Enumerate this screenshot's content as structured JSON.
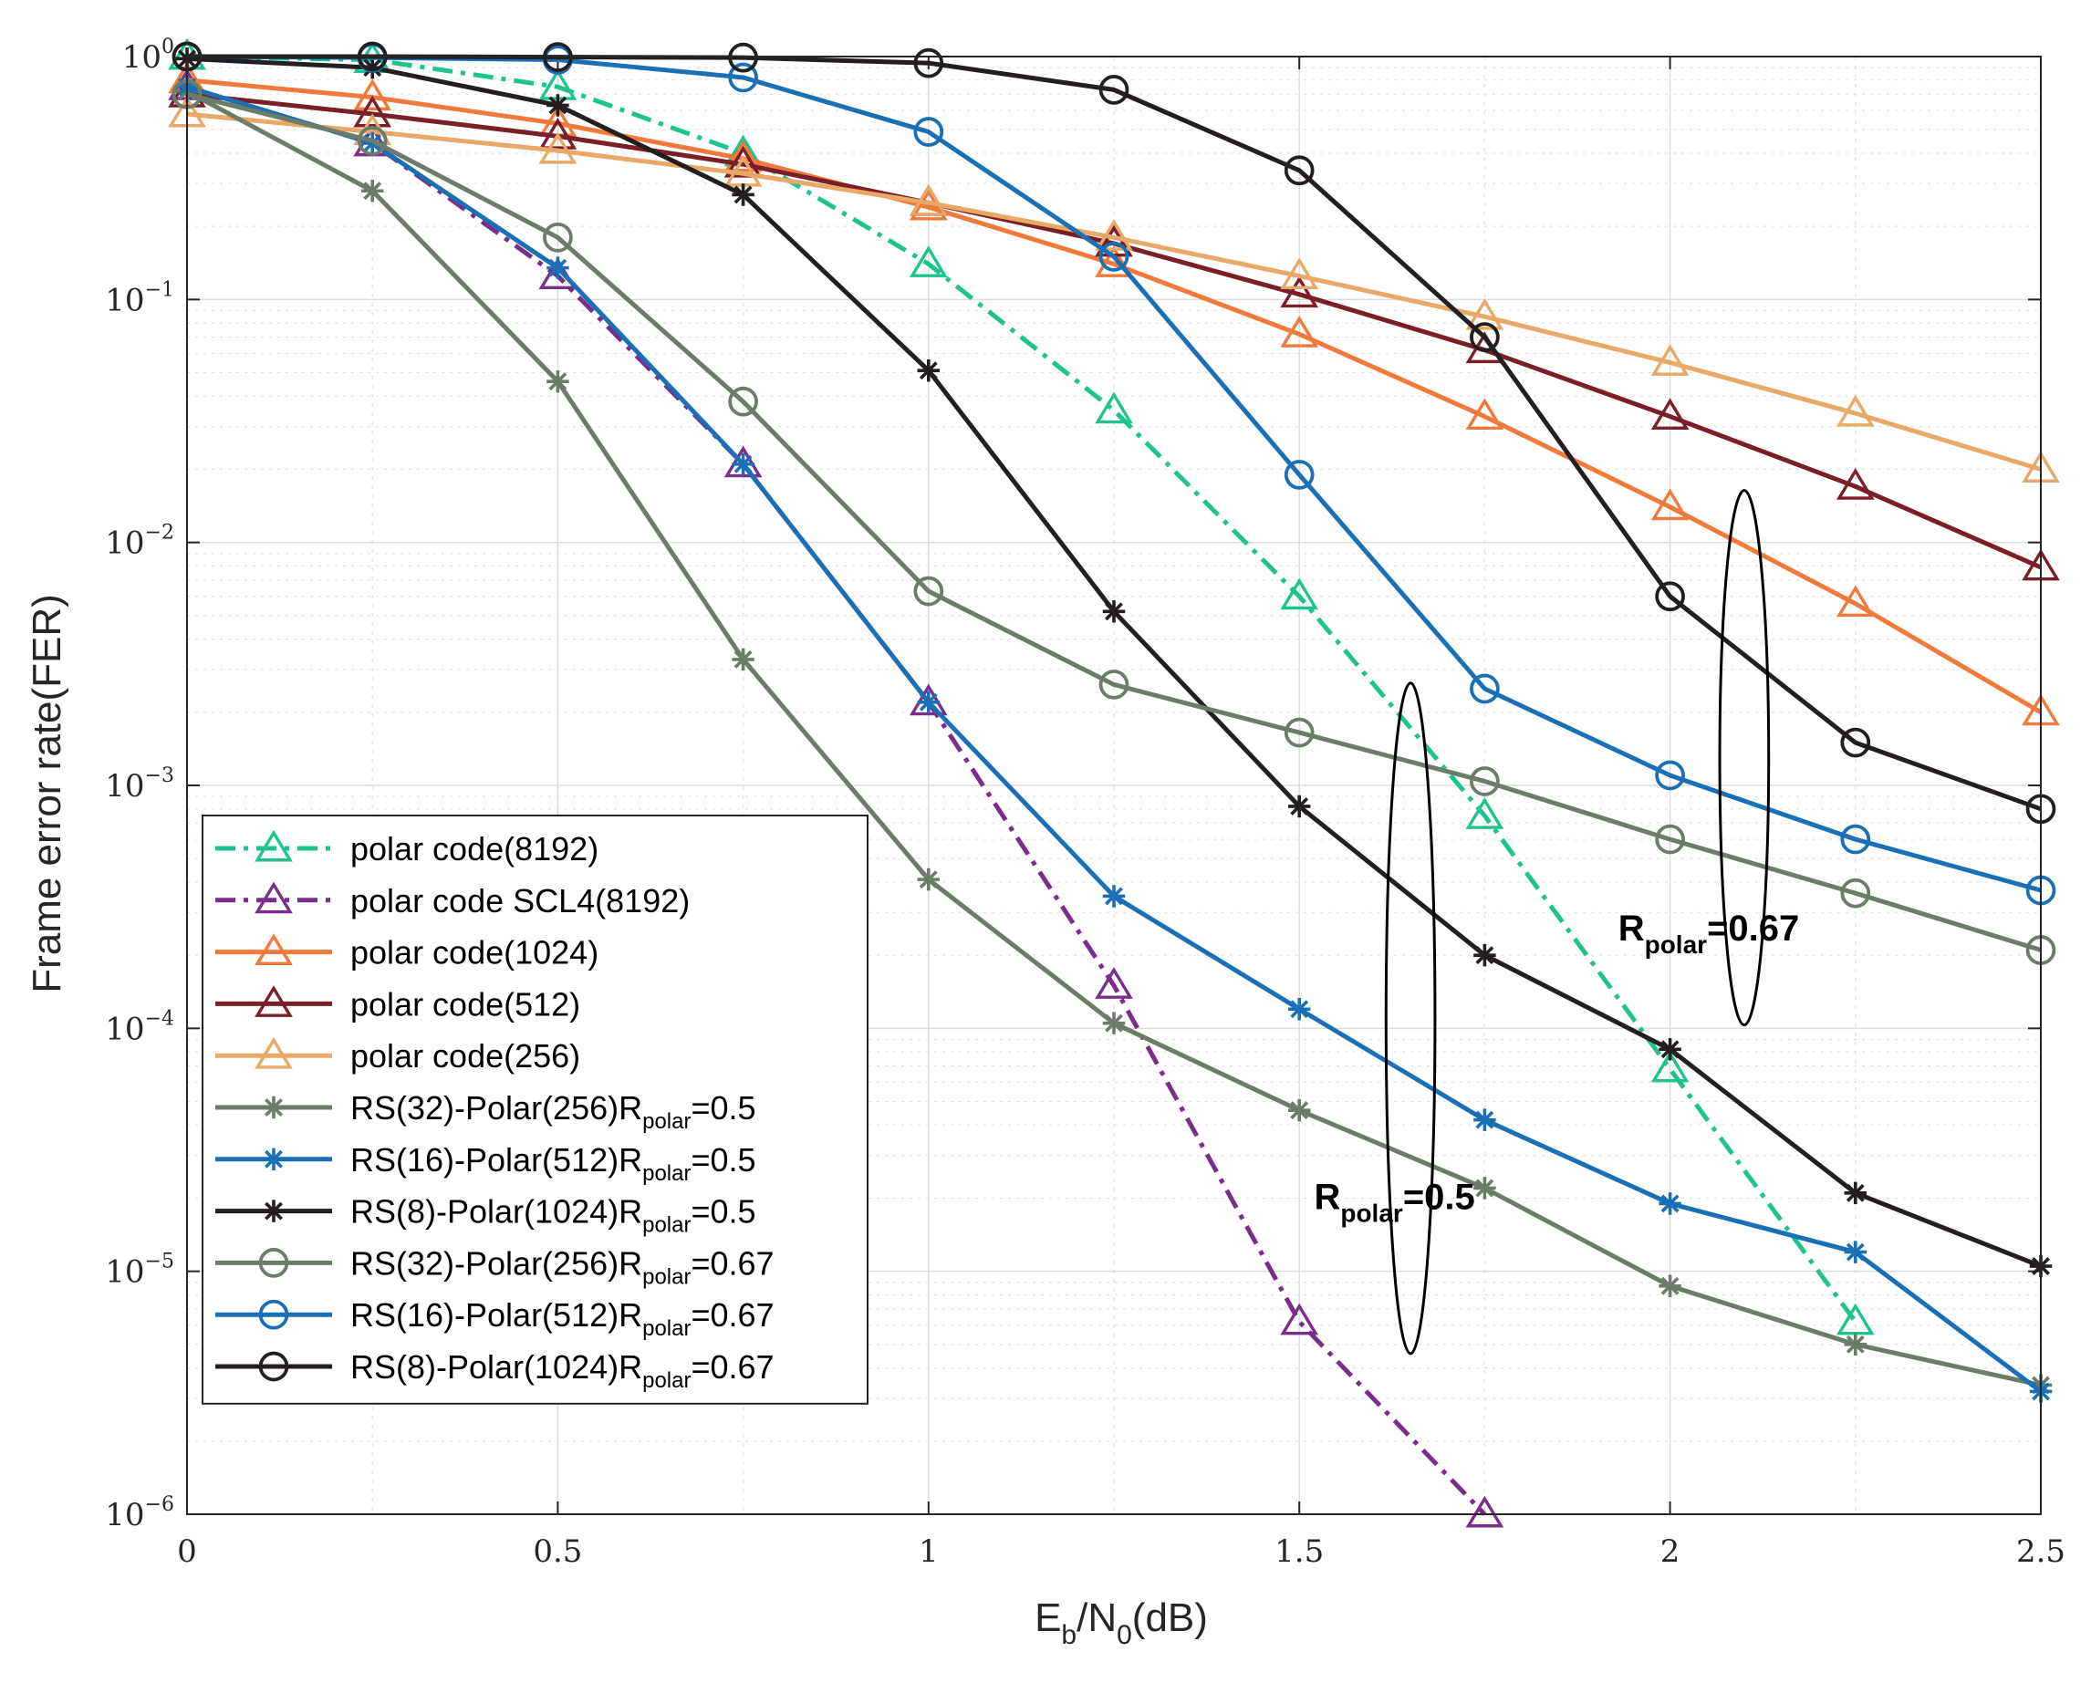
{
  "chart_data": {
    "type": "line",
    "title": "",
    "xlabel": {
      "main": "E",
      "sub1": "b",
      "mid": "/N",
      "sub2": "0",
      "tail": "(dB)"
    },
    "ylabel": "Frame error rate(FER)",
    "xlim": [
      0,
      2.5
    ],
    "ylim": [
      1e-06,
      1
    ],
    "yscale": "log",
    "grid": true,
    "legend_position": "bottom-left",
    "x_ticks": [
      "0",
      "0.5",
      "1",
      "1.5",
      "2",
      "2.5"
    ],
    "y_ticks": [
      {
        "base": "10",
        "exp": "0"
      },
      {
        "base": "10",
        "exp": "−1"
      },
      {
        "base": "10",
        "exp": "−2"
      },
      {
        "base": "10",
        "exp": "−3"
      },
      {
        "base": "10",
        "exp": "−4"
      },
      {
        "base": "10",
        "exp": "−5"
      },
      {
        "base": "10",
        "exp": "−6"
      }
    ],
    "series": [
      {
        "name": "polar code(8192)",
        "legend": {
          "main": "polar code(8192)"
        },
        "color": "#1fc38f",
        "dash": "dashdot",
        "marker": "triangle",
        "x": [
          0,
          0.25,
          0.5,
          0.75,
          1,
          1.25,
          1.5,
          1.75,
          2,
          2.25
        ],
        "y": [
          1.0,
          0.97,
          0.75,
          0.4,
          0.14,
          0.035,
          0.006,
          0.00075,
          6.8e-05,
          6.2e-06
        ]
      },
      {
        "name": "polar code SCL4(8192)",
        "legend": {
          "main": "polar code SCL4(8192)"
        },
        "color": "#7b2d8b",
        "dash": "dashdot",
        "marker": "triangle",
        "x": [
          0,
          0.25,
          0.5,
          0.75,
          1,
          1.25,
          1.5,
          1.75
        ],
        "y": [
          0.75,
          0.44,
          0.125,
          0.021,
          0.0022,
          0.00015,
          6.2e-06,
          1e-06
        ]
      },
      {
        "name": "polar code(1024)",
        "legend": {
          "main": "polar code(1024)"
        },
        "color": "#f07a3b",
        "dash": "solid",
        "marker": "triangle",
        "x": [
          0,
          0.25,
          0.5,
          0.75,
          1,
          1.25,
          1.5,
          1.75,
          2,
          2.25,
          2.5
        ],
        "y": [
          0.8,
          0.68,
          0.53,
          0.38,
          0.24,
          0.14,
          0.072,
          0.033,
          0.014,
          0.0056,
          0.002
        ]
      },
      {
        "name": "polar code(512)",
        "legend": {
          "main": "polar code(512)"
        },
        "color": "#7a1e27",
        "dash": "solid",
        "marker": "triangle",
        "x": [
          0,
          0.25,
          0.5,
          0.75,
          1,
          1.25,
          1.5,
          1.75,
          2,
          2.25,
          2.5
        ],
        "y": [
          0.7,
          0.58,
          0.47,
          0.36,
          0.25,
          0.17,
          0.105,
          0.062,
          0.033,
          0.017,
          0.0079
        ]
      },
      {
        "name": "polar code(256)",
        "legend": {
          "main": "polar code(256)"
        },
        "color": "#e8a867",
        "dash": "solid",
        "marker": "triangle",
        "x": [
          0,
          0.25,
          0.5,
          0.75,
          1,
          1.25,
          1.5,
          1.75,
          2,
          2.25,
          2.5
        ],
        "y": [
          0.58,
          0.49,
          0.41,
          0.33,
          0.25,
          0.18,
          0.125,
          0.085,
          0.055,
          0.034,
          0.02
        ]
      },
      {
        "name": "RS(32)-Polar(256)Rpolar=0.5",
        "legend": {
          "main": "RS(32)-Polar(256)R",
          "sub": "polar",
          "tail": "=0.5"
        },
        "color": "#6b7c68",
        "dash": "solid",
        "marker": "asterisk",
        "x": [
          0,
          0.25,
          0.5,
          0.75,
          1,
          1.25,
          1.5,
          1.75,
          2,
          2.25,
          2.5
        ],
        "y": [
          0.72,
          0.28,
          0.046,
          0.0033,
          0.00041,
          0.000105,
          4.6e-05,
          2.2e-05,
          8.7e-06,
          5e-06,
          3.4e-06
        ]
      },
      {
        "name": "RS(16)-Polar(512)Rpolar=0.5",
        "legend": {
          "main": "RS(16)-Polar(512)R",
          "sub": "polar",
          "tail": "=0.5"
        },
        "color": "#1a6fb5",
        "dash": "solid",
        "marker": "asterisk",
        "x": [
          0,
          0.25,
          0.5,
          0.75,
          1,
          1.25,
          1.5,
          1.75,
          2,
          2.25,
          2.5
        ],
        "y": [
          0.75,
          0.44,
          0.135,
          0.021,
          0.0022,
          0.00035,
          0.00012,
          4.2e-05,
          1.9e-05,
          1.2e-05,
          3.2e-06
        ]
      },
      {
        "name": "RS(8)-Polar(1024)Rpolar=0.5",
        "legend": {
          "main": "RS(8)-Polar(1024)R",
          "sub": "polar",
          "tail": "=0.5"
        },
        "color": "#231f20",
        "dash": "solid",
        "marker": "asterisk",
        "x": [
          0,
          0.25,
          0.5,
          0.75,
          1,
          1.25,
          1.5,
          1.75,
          2,
          2.25,
          2.5
        ],
        "y": [
          0.98,
          0.9,
          0.63,
          0.27,
          0.051,
          0.0052,
          0.00082,
          0.0002,
          8.2e-05,
          2.1e-05,
          1.05e-05
        ]
      },
      {
        "name": "RS(32)-Polar(256)Rpolar=0.67",
        "legend": {
          "main": "RS(32)-Polar(256)R",
          "sub": "polar",
          "tail": "=0.67"
        },
        "color": "#6b7c68",
        "dash": "solid",
        "marker": "circle",
        "x": [
          0,
          0.25,
          0.5,
          0.75,
          1,
          1.25,
          1.5,
          1.75,
          2,
          2.25,
          2.5
        ],
        "y": [
          0.7,
          0.45,
          0.18,
          0.038,
          0.0063,
          0.0026,
          0.00165,
          0.00104,
          0.0006,
          0.00036,
          0.00021
        ]
      },
      {
        "name": "RS(16)-Polar(512)Rpolar=0.67",
        "legend": {
          "main": "RS(16)-Polar(512)R",
          "sub": "polar",
          "tail": "=0.67"
        },
        "color": "#1a6fb5",
        "dash": "solid",
        "marker": "circle",
        "x": [
          0,
          0.25,
          0.5,
          0.75,
          1,
          1.25,
          1.5,
          1.75,
          2,
          2.25,
          2.5
        ],
        "y": [
          1.0,
          0.99,
          0.97,
          0.82,
          0.49,
          0.15,
          0.019,
          0.0025,
          0.0011,
          0.0006,
          0.00037
        ]
      },
      {
        "name": "RS(8)-Polar(1024)Rpolar=0.67",
        "legend": {
          "main": "RS(8)-Polar(1024)R",
          "sub": "polar",
          "tail": "=0.67"
        },
        "color": "#231f20",
        "dash": "solid",
        "marker": "circle",
        "x": [
          0,
          0.25,
          0.5,
          0.75,
          1,
          1.25,
          1.5,
          1.75,
          2,
          2.25,
          2.5
        ],
        "y": [
          1.0,
          1.0,
          0.995,
          0.99,
          0.94,
          0.73,
          0.34,
          0.07,
          0.006,
          0.0015,
          0.0008
        ]
      }
    ],
    "annotations": [
      {
        "name": "rpolar-05",
        "main": "R",
        "sub": "polar",
        "tail": "=0.5"
      },
      {
        "name": "rpolar-067",
        "main": "R",
        "sub": "polar",
        "tail": "=0.67"
      }
    ],
    "ellipses": [
      {
        "name": "ellipse-rpolar-05",
        "cx": 1.65,
        "cy_value": 0.00011,
        "rx_data": 0.033,
        "ry_decades": 1.38
      },
      {
        "name": "ellipse-rpolar-067",
        "cx": 2.1,
        "cy_value": 0.0013,
        "rx_data": 0.033,
        "ry_decades": 1.1
      }
    ]
  }
}
